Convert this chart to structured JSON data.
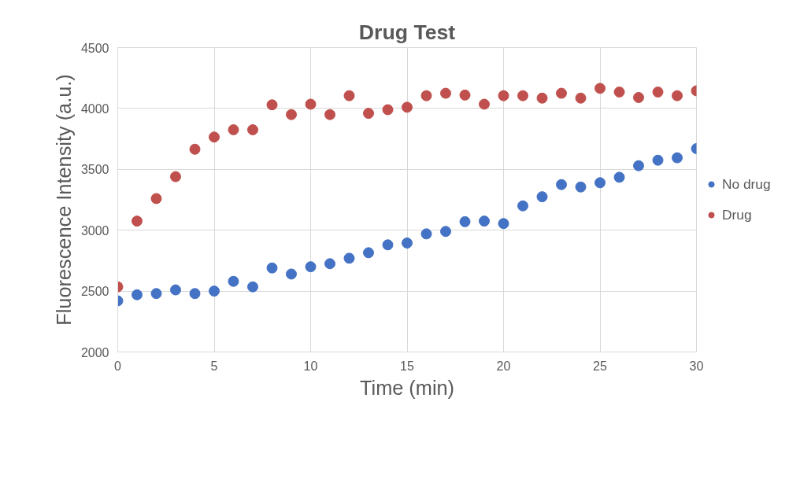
{
  "chart_data": {
    "type": "scatter",
    "title": "Drug Test",
    "xlabel": "Time (min)",
    "ylabel": "Fluorescence Intensity (a.u.)",
    "x": [
      0,
      1,
      2,
      3,
      4,
      5,
      6,
      7,
      8,
      9,
      10,
      11,
      12,
      13,
      14,
      15,
      16,
      17,
      18,
      19,
      20,
      21,
      22,
      23,
      24,
      25,
      26,
      27,
      28,
      29,
      30
    ],
    "series": [
      {
        "name": "No drug",
        "color": "#4472c4",
        "values": [
          2420,
          2470,
          2480,
          2510,
          2480,
          2500,
          2580,
          2535,
          2690,
          2640,
          2700,
          2725,
          2770,
          2815,
          2880,
          2895,
          2970,
          2990,
          3070,
          3075,
          3055,
          3200,
          3275,
          3375,
          3355,
          3390,
          3435,
          3530,
          3575,
          3595,
          3670
        ]
      },
      {
        "name": "Drug",
        "color": "#c0504d",
        "values": [
          2535,
          3075,
          3260,
          3440,
          3665,
          3765,
          3825,
          3825,
          4030,
          3950,
          4035,
          3950,
          4105,
          3960,
          3990,
          4010,
          4105,
          4125,
          4110,
          4035,
          4105,
          4105,
          4085,
          4125,
          4085,
          4165,
          4135,
          4090,
          4135,
          4105,
          4145
        ]
      }
    ],
    "xlim": [
      0,
      30
    ],
    "xticks": [
      0,
      5,
      10,
      15,
      20,
      25,
      30
    ],
    "ylim": [
      2000,
      4500
    ],
    "yticks": [
      2000,
      2500,
      3000,
      3500,
      4000,
      4500
    ],
    "grid": true,
    "legend": "right",
    "marker": "circle"
  }
}
